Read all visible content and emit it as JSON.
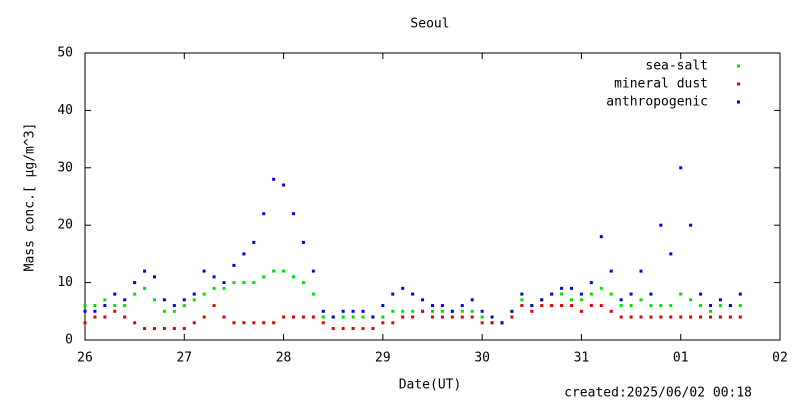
{
  "chart_data": {
    "type": "scatter",
    "title": "Seoul",
    "xlabel": "Date(UT)",
    "ylabel": "Mass conc.[ μg/m^3]",
    "footer": "created:2025/06/02 00:18",
    "xlim": [
      0,
      7
    ],
    "ylim": [
      0,
      50
    ],
    "xticks": [
      {
        "value": 0,
        "label": "26"
      },
      {
        "value": 1,
        "label": "27"
      },
      {
        "value": 2,
        "label": "28"
      },
      {
        "value": 3,
        "label": "29"
      },
      {
        "value": 4,
        "label": "30"
      },
      {
        "value": 5,
        "label": "31"
      },
      {
        "value": 6,
        "label": "01"
      },
      {
        "value": 7,
        "label": "02"
      }
    ],
    "yticks": [
      0,
      10,
      20,
      30,
      40,
      50
    ],
    "legend": "upper right",
    "x": [
      0,
      0.1,
      0.2,
      0.3,
      0.4,
      0.5,
      0.6,
      0.7,
      0.8,
      0.9,
      1,
      1.1,
      1.2,
      1.3,
      1.4,
      1.5,
      1.6,
      1.7,
      1.8,
      1.9,
      2,
      2.1,
      2.2,
      2.3,
      2.4,
      2.5,
      2.6,
      2.7,
      2.8,
      2.9,
      3,
      3.1,
      3.2,
      3.3,
      3.4,
      3.5,
      3.6,
      3.7,
      3.8,
      3.9,
      4,
      4.1,
      4.2,
      4.3,
      4.4,
      4.5,
      4.6,
      4.7,
      4.8,
      4.9,
      5,
      5.1,
      5.2,
      5.3,
      5.4,
      5.5,
      5.6,
      5.7,
      5.8,
      5.9,
      6,
      6.1,
      6.2,
      6.3,
      6.4,
      6.5,
      6.6
    ],
    "series": [
      {
        "name": "sea-salt",
        "color": "#00e000",
        "values": [
          6,
          6,
          7,
          6,
          6,
          8,
          9,
          7,
          5,
          5,
          6,
          7,
          8,
          9,
          9,
          10,
          10,
          10,
          11,
          12,
          12,
          11,
          10,
          8,
          4,
          4,
          4,
          4,
          4,
          4,
          4,
          5,
          5,
          5,
          5,
          5,
          5,
          5,
          5,
          5,
          4,
          3,
          3,
          5,
          7,
          6,
          7,
          8,
          8,
          7,
          7,
          8,
          9,
          8,
          6,
          6,
          7,
          6,
          6,
          6,
          8,
          7,
          6,
          5,
          6,
          6,
          6
        ]
      },
      {
        "name": "mineral dust",
        "color": "#e00000",
        "values": [
          3,
          4,
          4,
          5,
          4,
          3,
          2,
          2,
          2,
          2,
          2,
          3,
          4,
          6,
          4,
          3,
          3,
          3,
          3,
          3,
          4,
          4,
          4,
          4,
          3,
          2,
          2,
          2,
          2,
          2,
          3,
          3,
          4,
          4,
          5,
          4,
          4,
          4,
          4,
          4,
          3,
          3,
          3,
          4,
          6,
          5,
          6,
          6,
          6,
          6,
          5,
          6,
          6,
          5,
          4,
          4,
          4,
          4,
          4,
          4,
          4,
          4,
          4,
          4,
          4,
          4,
          4
        ]
      },
      {
        "name": "anthropogenic",
        "color": "#0000e0",
        "values": [
          5,
          5,
          6,
          8,
          7,
          10,
          12,
          11,
          7,
          6,
          7,
          8,
          12,
          11,
          10,
          13,
          15,
          17,
          22,
          28,
          27,
          22,
          17,
          12,
          5,
          4,
          5,
          5,
          5,
          4,
          6,
          8,
          9,
          8,
          7,
          6,
          6,
          5,
          6,
          7,
          5,
          4,
          3,
          5,
          8,
          6,
          7,
          8,
          9,
          9,
          8,
          10,
          18,
          12,
          7,
          8,
          12,
          8,
          20,
          15,
          30,
          20,
          8,
          6,
          7,
          6,
          8
        ]
      }
    ]
  }
}
